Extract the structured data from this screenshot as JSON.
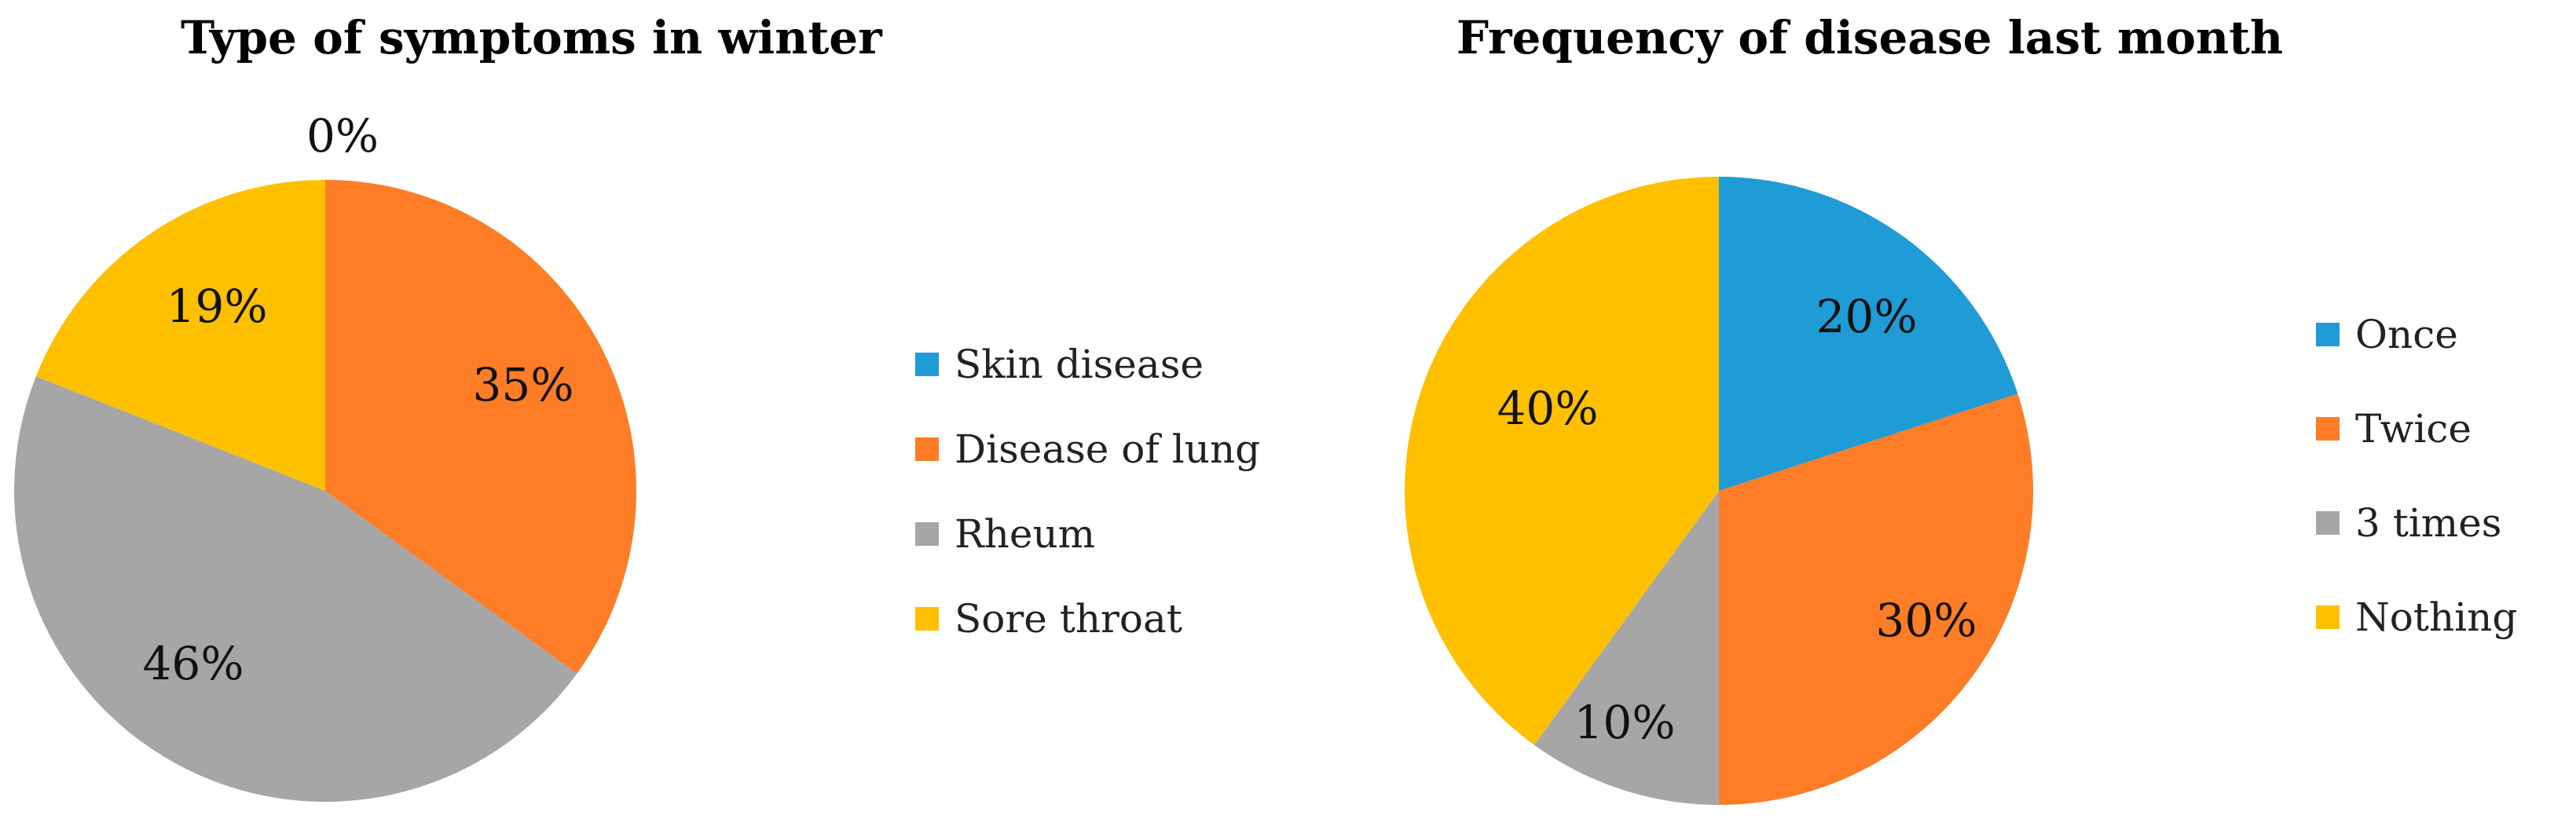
{
  "chart_data": [
    {
      "type": "pie",
      "title": "Type of symptoms in winter",
      "categories": [
        "Skin disease",
        "Disease of lung",
        "Rheum",
        "Sore throat"
      ],
      "values": [
        0,
        35,
        46,
        19
      ],
      "data_labels": [
        "0%",
        "35%",
        "46%",
        "19%"
      ],
      "colors": [
        "#1f9bd6",
        "#fe7d26",
        "#a6a6a6",
        "#fec000"
      ],
      "legend_position": "right"
    },
    {
      "type": "pie",
      "title": "Frequency of disease last month",
      "categories": [
        "Once",
        "Twice",
        "3 times",
        "Nothing"
      ],
      "values": [
        20,
        30,
        10,
        40
      ],
      "data_labels": [
        "20%",
        "30%",
        "10%",
        "40%"
      ],
      "colors": [
        "#1f9bd6",
        "#fe7d26",
        "#a6a6a6",
        "#fec000"
      ],
      "legend_position": "right"
    }
  ]
}
